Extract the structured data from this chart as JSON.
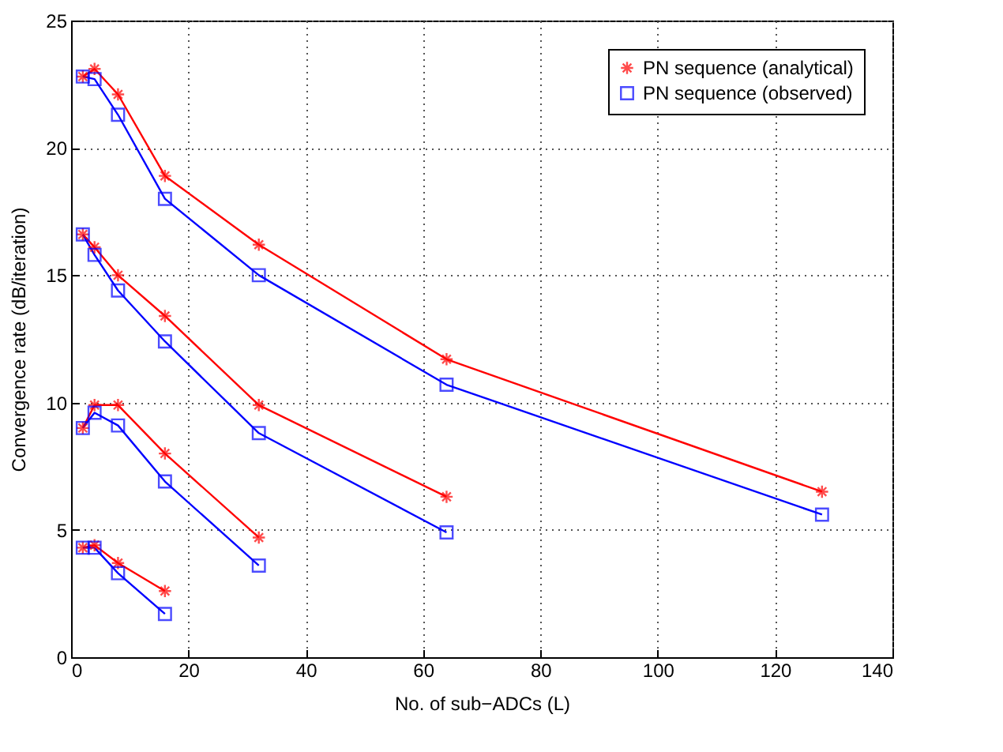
{
  "chart_data": {
    "type": "line",
    "xlabel": "No. of sub−ADCs (L)",
    "ylabel": "Convergence rate (dB/iteration)",
    "xlim": [
      0,
      140
    ],
    "xticks": [
      0,
      20,
      40,
      60,
      80,
      100,
      120,
      140
    ],
    "ylim": [
      0,
      25
    ],
    "yticks": [
      0,
      5,
      10,
      15,
      20,
      25
    ],
    "grid": true,
    "legend": "top right",
    "series": [
      {
        "name": "PN sequence (analytical)",
        "color": "#ff0000",
        "marker": "cross",
        "x": [
          2,
          4,
          8,
          16,
          32,
          64,
          128
        ],
        "values": [
          22.8,
          23.1,
          22.1,
          18.9,
          16.2,
          11.7,
          6.5
        ]
      },
      {
        "name": "PN sequence (observed)",
        "color": "#0000ff",
        "marker": "square",
        "x": [
          2,
          4,
          8,
          16,
          32,
          64,
          128
        ],
        "values": [
          22.8,
          22.7,
          21.3,
          18.0,
          15.0,
          10.7,
          5.6
        ]
      },
      {
        "color": "#ff0000",
        "marker": "cross",
        "x": [
          2,
          4,
          8,
          16,
          32,
          64
        ],
        "values": [
          16.6,
          16.1,
          15.0,
          13.4,
          9.9,
          6.3
        ]
      },
      {
        "color": "#0000ff",
        "marker": "square",
        "x": [
          2,
          4,
          8,
          16,
          32,
          64
        ],
        "values": [
          16.6,
          15.8,
          14.4,
          12.4,
          8.8,
          4.9
        ]
      },
      {
        "color": "#ff0000",
        "marker": "cross",
        "x": [
          2,
          4,
          8,
          16,
          32
        ],
        "values": [
          9.0,
          9.9,
          9.9,
          8.0,
          4.7
        ]
      },
      {
        "color": "#0000ff",
        "marker": "square",
        "x": [
          2,
          4,
          8,
          16,
          32
        ],
        "values": [
          9.0,
          9.6,
          9.1,
          6.9,
          3.6
        ]
      },
      {
        "color": "#ff0000",
        "marker": "cross",
        "x": [
          2,
          4,
          8,
          16
        ],
        "values": [
          4.3,
          4.4,
          3.7,
          2.6
        ]
      },
      {
        "color": "#0000ff",
        "marker": "square",
        "x": [
          2,
          4,
          8,
          16
        ],
        "values": [
          4.3,
          4.3,
          3.3,
          1.7
        ]
      }
    ]
  }
}
